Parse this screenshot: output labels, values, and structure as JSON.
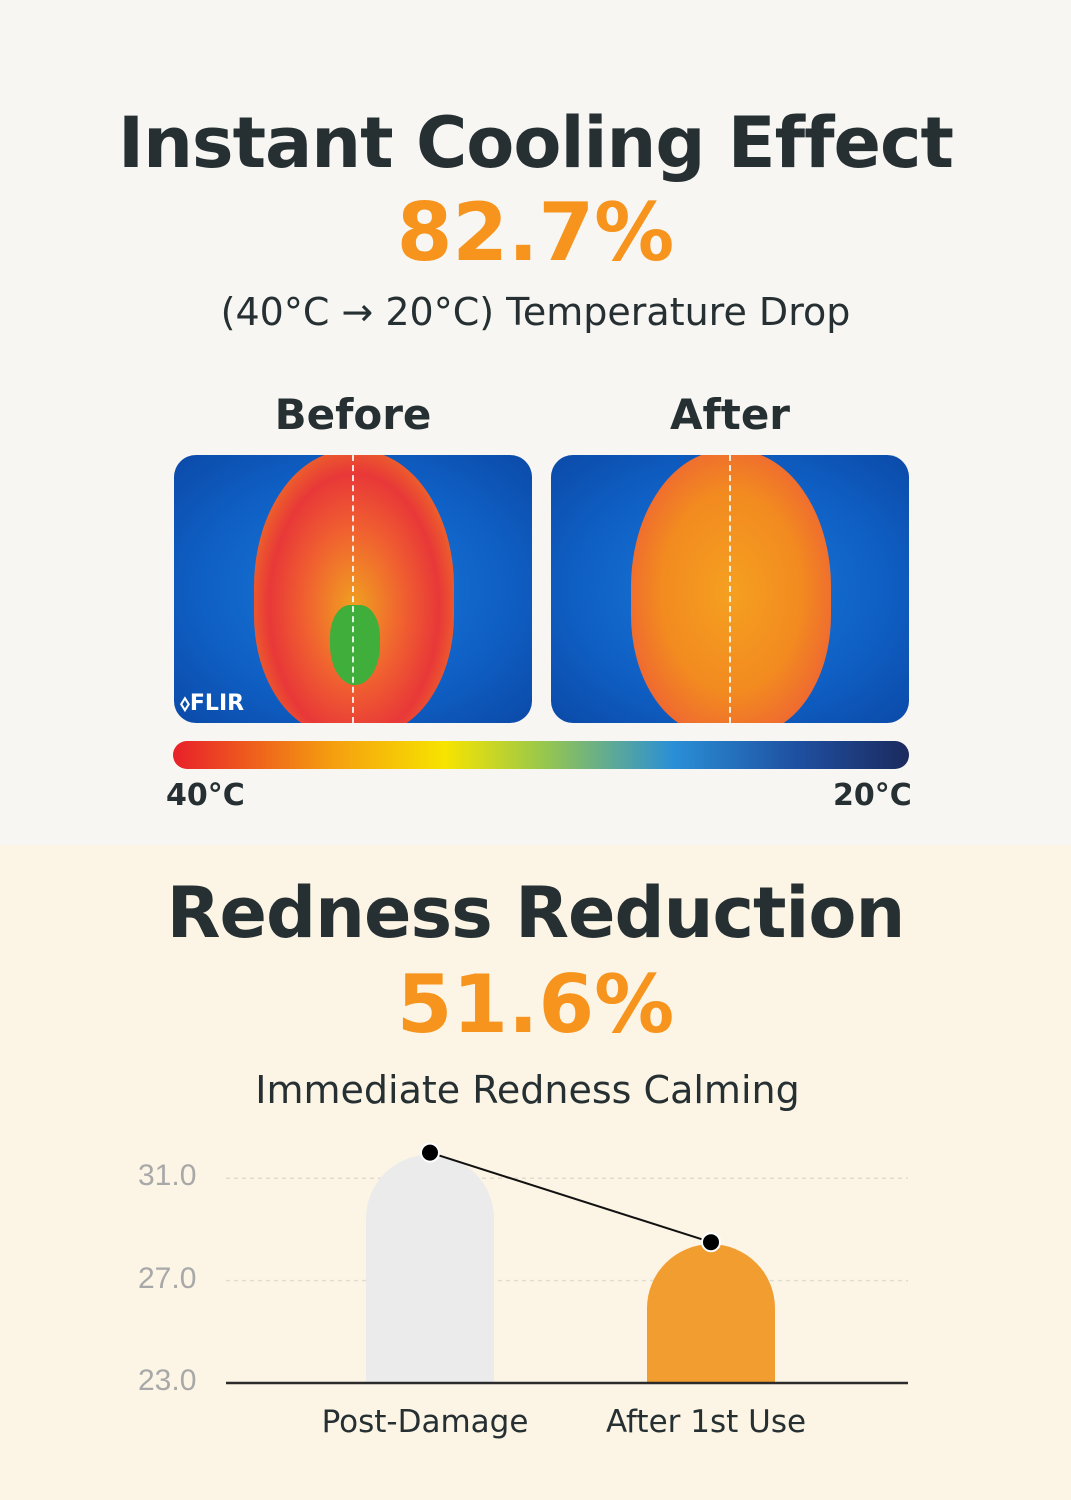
{
  "cooling": {
    "title": "Instant Cooling Effect",
    "percent": "82.7%",
    "subtitle": "(40°C → 20°C) Temperature Drop",
    "before_label": "Before",
    "after_label": "After",
    "logo": "FLIR",
    "scale_hot": "40°C",
    "scale_cold": "20°C"
  },
  "redness": {
    "title": "Redness Reduction",
    "percent": "51.6%",
    "subtitle": "Immediate Redness Calming"
  },
  "colors": {
    "accent": "#f7941d",
    "bar_before": "#ebebeb",
    "bar_after": "#f29d30"
  },
  "chart_data": {
    "type": "bar",
    "categories": [
      "Post-Damage",
      "After 1st Use"
    ],
    "values": [
      32.0,
      28.5
    ],
    "yticks": [
      "23.0",
      "27.0",
      "31.0"
    ],
    "ylim": [
      23,
      33
    ],
    "grid": true,
    "connecting_line": true
  }
}
